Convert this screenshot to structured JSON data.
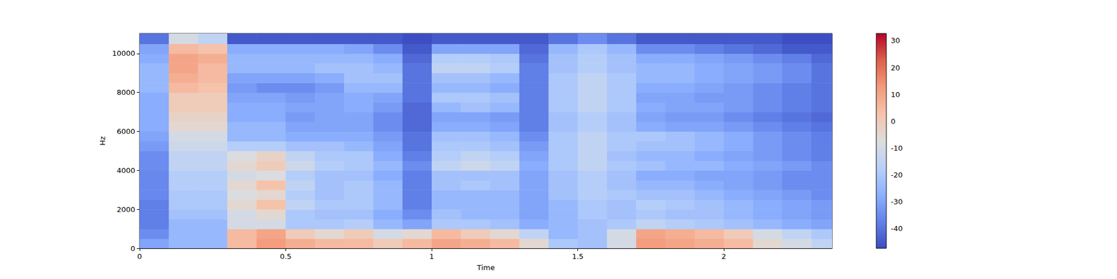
{
  "chart_data": {
    "type": "heatmap",
    "x_label": "Time",
    "y_label": "Hz",
    "xlim": [
      0,
      2.371
    ],
    "xticks": [
      0,
      0.5,
      1,
      1.5,
      2
    ],
    "ylim": [
      0,
      11025
    ],
    "yticks": [
      0,
      2000,
      4000,
      6000,
      8000,
      10000
    ],
    "cells": {
      "t_edges": [
        0,
        0.1,
        0.2,
        0.3,
        0.4,
        0.5,
        0.6,
        0.7,
        0.8,
        0.9,
        1.0,
        1.1,
        1.2,
        1.3,
        1.4,
        1.5,
        1.6,
        1.7,
        1.8,
        1.9,
        2.0,
        2.1,
        2.2,
        2.3,
        2.371
      ],
      "f_edges": [
        0,
        500,
        1000,
        1500,
        2000,
        2500,
        3000,
        3500,
        4000,
        4500,
        5000,
        5500,
        6000,
        6500,
        7000,
        7500,
        8000,
        8500,
        9000,
        9500,
        10000,
        10500,
        11025
      ],
      "values": [
        [
          -30,
          -25,
          -25,
          5,
          12,
          8,
          5,
          5,
          0,
          5,
          10,
          8,
          5,
          -5,
          -20,
          -22,
          -10,
          12,
          10,
          8,
          5,
          -5,
          -10,
          -15
        ],
        [
          -35,
          -25,
          -25,
          5,
          10,
          0,
          -5,
          0,
          -10,
          -5,
          5,
          0,
          -5,
          -15,
          -25,
          -22,
          -10,
          10,
          8,
          5,
          0,
          -10,
          -15,
          -20
        ],
        [
          -38,
          -25,
          -25,
          -10,
          -10,
          -20,
          -20,
          -18,
          -25,
          -30,
          -20,
          -20,
          -22,
          -28,
          -25,
          -22,
          -20,
          -15,
          -18,
          -20,
          -22,
          -25,
          -28,
          -30
        ],
        [
          -38,
          -22,
          -22,
          -10,
          -5,
          -20,
          -22,
          -22,
          -28,
          -35,
          -22,
          -25,
          -25,
          -30,
          -25,
          -20,
          -22,
          -20,
          -22,
          -22,
          -25,
          -28,
          -30,
          -32
        ],
        [
          -38,
          -20,
          -20,
          -5,
          3,
          -15,
          -20,
          -20,
          -25,
          -38,
          -25,
          -25,
          -25,
          -30,
          -25,
          -20,
          -22,
          -18,
          -20,
          -22,
          -25,
          -28,
          -30,
          -32
        ],
        [
          -36,
          -20,
          -20,
          -8,
          -5,
          -18,
          -22,
          -20,
          -25,
          -38,
          -25,
          -25,
          -25,
          -30,
          -22,
          -18,
          -20,
          -22,
          -22,
          -25,
          -28,
          -30,
          -32,
          -35
        ],
        [
          -36,
          -18,
          -18,
          -5,
          3,
          -15,
          -22,
          -20,
          -25,
          -38,
          -22,
          -20,
          -22,
          -30,
          -22,
          -18,
          -22,
          -25,
          -25,
          -28,
          -30,
          -32,
          -35,
          -35
        ],
        [
          -36,
          -18,
          -18,
          -10,
          -8,
          -18,
          -22,
          -22,
          -28,
          -38,
          -22,
          -22,
          -22,
          -30,
          -22,
          -18,
          -22,
          -28,
          -28,
          -30,
          -30,
          -32,
          -35,
          -35
        ],
        [
          -35,
          -15,
          -15,
          -5,
          0,
          -12,
          -18,
          -20,
          -25,
          -35,
          -15,
          -12,
          -15,
          -28,
          -20,
          -15,
          -20,
          -22,
          -25,
          -25,
          -28,
          -30,
          -32,
          -35
        ],
        [
          -35,
          -15,
          -15,
          -8,
          -3,
          -15,
          -20,
          -20,
          -28,
          -38,
          -18,
          -15,
          -18,
          -30,
          -20,
          -15,
          -22,
          -25,
          -25,
          -28,
          -30,
          -32,
          -35,
          -38
        ],
        [
          -32,
          -12,
          -12,
          -18,
          -18,
          -22,
          -22,
          -25,
          -30,
          -40,
          -20,
          -20,
          -22,
          -32,
          -20,
          -15,
          -20,
          -22,
          -22,
          -25,
          -28,
          -32,
          -35,
          -38
        ],
        [
          -30,
          -10,
          -10,
          -25,
          -25,
          -28,
          -28,
          -28,
          -32,
          -40,
          -22,
          -22,
          -25,
          -35,
          -20,
          -15,
          -20,
          -20,
          -22,
          -25,
          -28,
          -32,
          -35,
          -38
        ],
        [
          -28,
          -5,
          -5,
          -25,
          -25,
          -30,
          -30,
          -30,
          -35,
          -42,
          -28,
          -28,
          -30,
          -38,
          -22,
          -18,
          -22,
          -28,
          -30,
          -30,
          -32,
          -35,
          -38,
          -40
        ],
        [
          -28,
          -3,
          -3,
          -28,
          -28,
          -32,
          -30,
          -30,
          -35,
          -42,
          -30,
          -30,
          -32,
          -38,
          -22,
          -18,
          -22,
          -30,
          -32,
          -32,
          -35,
          -38,
          -40,
          -42
        ],
        [
          -28,
          0,
          0,
          -28,
          -28,
          -30,
          -30,
          -28,
          -32,
          -42,
          -25,
          -22,
          -25,
          -38,
          -20,
          -15,
          -20,
          -28,
          -30,
          -30,
          -32,
          -35,
          -38,
          -40
        ],
        [
          -28,
          0,
          0,
          -30,
          -30,
          -32,
          -30,
          -28,
          -30,
          -40,
          -20,
          -20,
          -22,
          -38,
          -20,
          -15,
          -20,
          -30,
          -30,
          -32,
          -32,
          -35,
          -38,
          -40
        ],
        [
          -25,
          5,
          3,
          -32,
          -35,
          -35,
          -32,
          -25,
          -25,
          -40,
          -25,
          -25,
          -28,
          -38,
          -20,
          -15,
          -20,
          -28,
          -28,
          -30,
          -32,
          -35,
          -38,
          -40
        ],
        [
          -25,
          8,
          5,
          -30,
          -30,
          -30,
          -28,
          -22,
          -22,
          -40,
          -22,
          -22,
          -25,
          -38,
          -20,
          -15,
          -20,
          -25,
          -25,
          -28,
          -30,
          -32,
          -35,
          -40
        ],
        [
          -25,
          10,
          5,
          -25,
          -25,
          -25,
          -22,
          -22,
          -25,
          -40,
          -15,
          -15,
          -18,
          -38,
          -22,
          -18,
          -22,
          -25,
          -25,
          -28,
          -30,
          -32,
          -35,
          -40
        ],
        [
          -28,
          10,
          8,
          -25,
          -25,
          -25,
          -25,
          -25,
          -28,
          -42,
          -18,
          -18,
          -20,
          -40,
          -22,
          -18,
          -22,
          -28,
          -28,
          -30,
          -32,
          -35,
          -38,
          -42
        ],
        [
          -30,
          5,
          3,
          -28,
          -28,
          -28,
          -28,
          -30,
          -35,
          -45,
          -30,
          -30,
          -30,
          -42,
          -25,
          -20,
          -25,
          -35,
          -35,
          -38,
          -40,
          -42,
          -45,
          -45
        ],
        [
          -40,
          -10,
          -15,
          -45,
          -45,
          -45,
          -45,
          -45,
          -45,
          -47,
          -45,
          -45,
          -45,
          -45,
          -40,
          -35,
          -40,
          -45,
          -45,
          -45,
          -45,
          -45,
          -47,
          -47
        ]
      ]
    },
    "colorbar": {
      "range": [
        -47.4,
        32.7
      ],
      "ticks": [
        -40,
        -30,
        -20,
        -10,
        0,
        10,
        20,
        30
      ]
    }
  }
}
